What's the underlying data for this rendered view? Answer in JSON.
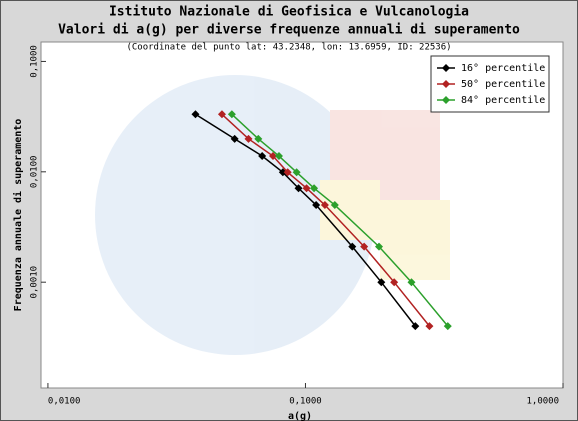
{
  "chart_data": {
    "type": "line",
    "title": "Istituto Nazionale di Geofisica e Vulcanologia",
    "subtitle": "Valori di a(g) per diverse frequenze annuali di superamento",
    "note": "(Coordinate del punto lat: 43.2348, lon: 13.6959, ID: 22536)",
    "x_label": "a(g)",
    "y_label": "Frequenza annuale di superamento",
    "x_log": true,
    "y_log": true,
    "xlim": [
      0.0094,
      1.0
    ],
    "ylim": [
      0.00011,
      0.15
    ],
    "xticks": [
      {
        "value": 0.01,
        "label": "0,0100"
      },
      {
        "value": 0.1,
        "label": "0,1000"
      },
      {
        "value": 1.0,
        "label": "1,0000"
      }
    ],
    "yticks": [
      {
        "value": 0.1,
        "label": "0,1000"
      },
      {
        "value": 0.01,
        "label": "0,0100"
      },
      {
        "value": 0.001,
        "label": "0,0010"
      }
    ],
    "legend": "top-right",
    "series": [
      {
        "name": "16° percentile",
        "color": "#000000",
        "x": [
          0.0374,
          0.0531,
          0.0679,
          0.0817,
          0.094,
          0.11,
          0.152,
          0.197,
          0.267
        ],
        "values": [
          0.0332,
          0.0199,
          0.0139,
          0.0099,
          0.0071,
          0.005,
          0.0021,
          0.001,
          0.0004
        ]
      },
      {
        "name": "50° percentile",
        "color": "#b22222",
        "x": [
          0.0474,
          0.0601,
          0.0748,
          0.0853,
          0.101,
          0.119,
          0.169,
          0.221,
          0.303
        ],
        "values": [
          0.0332,
          0.0199,
          0.0139,
          0.0099,
          0.0071,
          0.005,
          0.0021,
          0.001,
          0.0004
        ]
      },
      {
        "name": "84° percentile",
        "color": "#2ca02c",
        "x": [
          0.0518,
          0.0656,
          0.0789,
          0.0924,
          0.108,
          0.13,
          0.193,
          0.258,
          0.357
        ],
        "values": [
          0.0332,
          0.0199,
          0.0139,
          0.0099,
          0.0071,
          0.005,
          0.0021,
          0.001,
          0.0004
        ]
      }
    ]
  }
}
